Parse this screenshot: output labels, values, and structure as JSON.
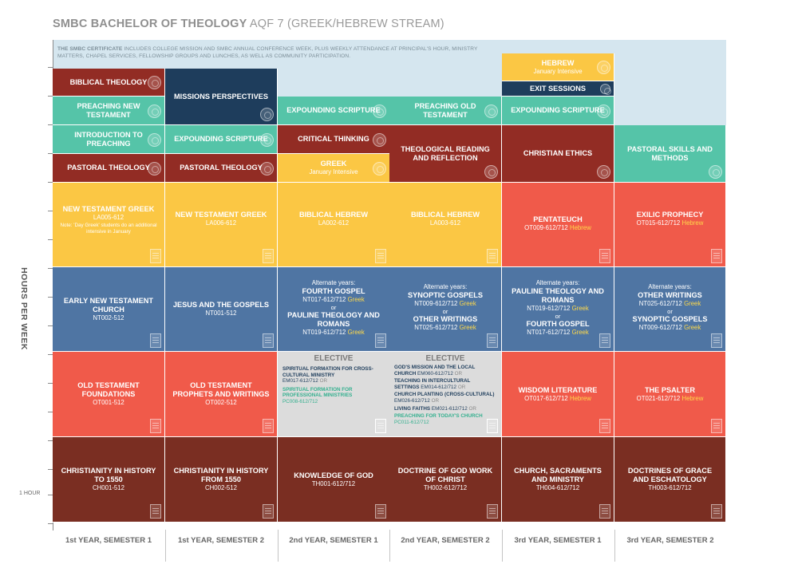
{
  "title": {
    "main": "SMBC BACHELOR OF THEOLOGY",
    "sub": "AQF 7 (GREEK/HEBREW STREAM)"
  },
  "certificate_note": {
    "label": "THE SMBC CERTIFICATE",
    "text": "INCLUDES COLLEGE MISSION AND SMBC ANNUAL CONFERENCE WEEK, PLUS WEEKLY ATTENDANCE AT PRINCIPAL'S HOUR, MINISTRY MATTERS, CHAPEL SERVICES, FELLOWSHIP GROUPS AND LUNCHES, AS WELL AS COMMUNITY PARTICIPATION."
  },
  "axis": {
    "label": "HOURS PER WEEK",
    "unit_label": "1 HOUR"
  },
  "columns": [
    "1st YEAR, SEMESTER 1",
    "1st YEAR, SEMESTER 2",
    "2nd YEAR, SEMESTER 1",
    "2nd YEAR, SEMESTER 2",
    "3rd YEAR, SEMESTER 1",
    "3rd YEAR, SEMESTER 2"
  ],
  "colors": {
    "red": "#f05a4a",
    "maroon": "#922c24",
    "navy": "#1e3d5c",
    "teal": "#55c4a8",
    "yellow": "#fbc744",
    "blue": "#4f75a3",
    "brown": "#7a2e22",
    "grey": "#dcdcdc",
    "band": "#d5e6ef"
  },
  "units": {
    "biblical_theology": "BIBLICAL THEOLOGY",
    "missions_perspectives": "MISSIONS PERSPECTIVES",
    "hebrew_intensive": {
      "title": "HEBREW",
      "sub": "January Intensive"
    },
    "exit_sessions": "EXIT SESSIONS",
    "preaching_nt": "PREACHING NEW TESTAMENT",
    "expounding_scripture": "EXPOUNDING SCRIPTURE",
    "preaching_ot": "PREACHING OLD TESTAMENT",
    "intro_preaching": "INTRODUCTION TO PREACHING",
    "critical_thinking": "CRITICAL THINKING",
    "theological_reading": "THEOLOGICAL READING AND REFLECTION",
    "christian_ethics": "CHRISTIAN ETHICS",
    "pastoral_skills": "PASTORAL SKILLS AND METHODS",
    "pastoral_theology": "PASTORAL THEOLOGY",
    "greek_intensive": {
      "title": "GREEK",
      "sub": "January Intensive"
    },
    "ntg1": {
      "title": "NEW TESTAMENT GREEK",
      "code": "LA005-612",
      "note": "Note: 'Day Greek' students do an additional intensive in January"
    },
    "ntg2": {
      "title": "NEW TESTAMENT GREEK",
      "code": "LA006-612"
    },
    "bh1": {
      "title": "BIBLICAL HEBREW",
      "code": "LA002-612"
    },
    "bh2": {
      "title": "BIBLICAL HEBREW",
      "code": "LA003-612"
    },
    "pentateuch": {
      "title": "PENTATEUCH",
      "code": "OT009-612/712",
      "lang": "Hebrew"
    },
    "exilic": {
      "title": "EXILIC PROPHECY",
      "code": "OT015-612/712",
      "lang": "Hebrew"
    },
    "early_church": {
      "title": "EARLY NEW TESTAMENT CHURCH",
      "code": "NT002-512"
    },
    "jesus_gospels": {
      "title": "JESUS AND THE GOSPELS",
      "code": "NT001-512"
    },
    "alt_y2s1": {
      "alt": "Alternate years:",
      "t1": "FOURTH GOSPEL",
      "c1": "NT017-612/712",
      "g1": "Greek",
      "or": "or",
      "t2": "PAULINE THEOLOGY AND ROMANS",
      "c2": "NT019-612/712",
      "g2": "Greek"
    },
    "alt_y2s2": {
      "alt": "Alternate years:",
      "t1": "SYNOPTIC GOSPELS",
      "c1": "NT009-612/712",
      "g1": "Greek",
      "or": "or",
      "t2": "OTHER WRITINGS",
      "c2": "NT025-612/712",
      "g2": "Greek"
    },
    "alt_y3s1": {
      "alt": "Alternate years:",
      "t1": "PAULINE THEOLOGY AND ROMANS",
      "c1": "NT019-612/712",
      "g1": "Greek",
      "or": "or",
      "t2": "FOURTH GOSPEL",
      "c2": "NT017-612/712",
      "g2": "Greek"
    },
    "alt_y3s2": {
      "alt": "Alternate years:",
      "t1": "OTHER WRITINGS",
      "c1": "NT025-612/712",
      "g1": "Greek",
      "or": "or",
      "t2": "SYNOPTIC GOSPELS",
      "c2": "NT009-612/712",
      "g2": "Greek"
    },
    "ot_foundations": {
      "title": "OLD TESTAMENT FOUNDATIONS",
      "code": "OT001-512"
    },
    "ot_prophets": {
      "title": "OLD TESTAMENT PROPHETS AND WRITINGS",
      "code": "OT002-512"
    },
    "elective1": {
      "heading": "ELECTIVE",
      "i1_title": "SPIRITUAL FORMATION FOR CROSS-CULTURAL MINISTRY",
      "i1_code": "EM017-612/712",
      "i1_or": "OR",
      "i2_title": "SPIRITUAL FORMATION FOR PROFESSIONAL MINISTRIES",
      "i2_code": "PC008-612/712"
    },
    "elective2": {
      "heading": "ELECTIVE",
      "i1_title": "GOD'S MISSION AND THE LOCAL CHURCH",
      "i1_code": "EM060-612/712",
      "i1_or": "OR",
      "i2_title": "TEACHING IN INTERCULTURAL SETTINGS",
      "i2_code": "EM014-612/712",
      "i2_or": "OR",
      "i3_title": "CHURCH PLANTING (CROSS-CULTURAL)",
      "i3_code": "EM026-612/712",
      "i3_or": "OR",
      "i4_title": "LIVING FAITHS",
      "i4_code": "EM021-612/712",
      "i4_or": "OR",
      "i5_title": "PREACHING FOR TODAY'S CHURCH",
      "i5_code": "PC011-612/712"
    },
    "wisdom": {
      "title": "WISDOM LITERATURE",
      "code": "OT017-612/712",
      "lang": "Hebrew"
    },
    "psalter": {
      "title": "THE PSALTER",
      "code": "OT021-612/712",
      "lang": "Hebrew"
    },
    "christianity_to": {
      "title": "CHRISTIANITY IN HISTORY TO 1550",
      "code": "CH001-512"
    },
    "christianity_from": {
      "title": "CHRISTIANITY IN HISTORY FROM 1550",
      "code": "CH002-512"
    },
    "knowledge_god": {
      "title": "KNOWLEDGE OF GOD",
      "code": "TH001-612/712"
    },
    "doctrine_god": {
      "title": "DOCTRINE OF GOD WORK OF CHRIST",
      "code": "TH002-612/712"
    },
    "church_sacraments": {
      "title": "CHURCH, SACRAMENTS AND MINISTRY",
      "code": "TH004-612/712"
    },
    "doctrines_grace": {
      "title": "DOCTRINES OF GRACE AND ESCHATOLOGY",
      "code": "TH003-612/712"
    }
  }
}
